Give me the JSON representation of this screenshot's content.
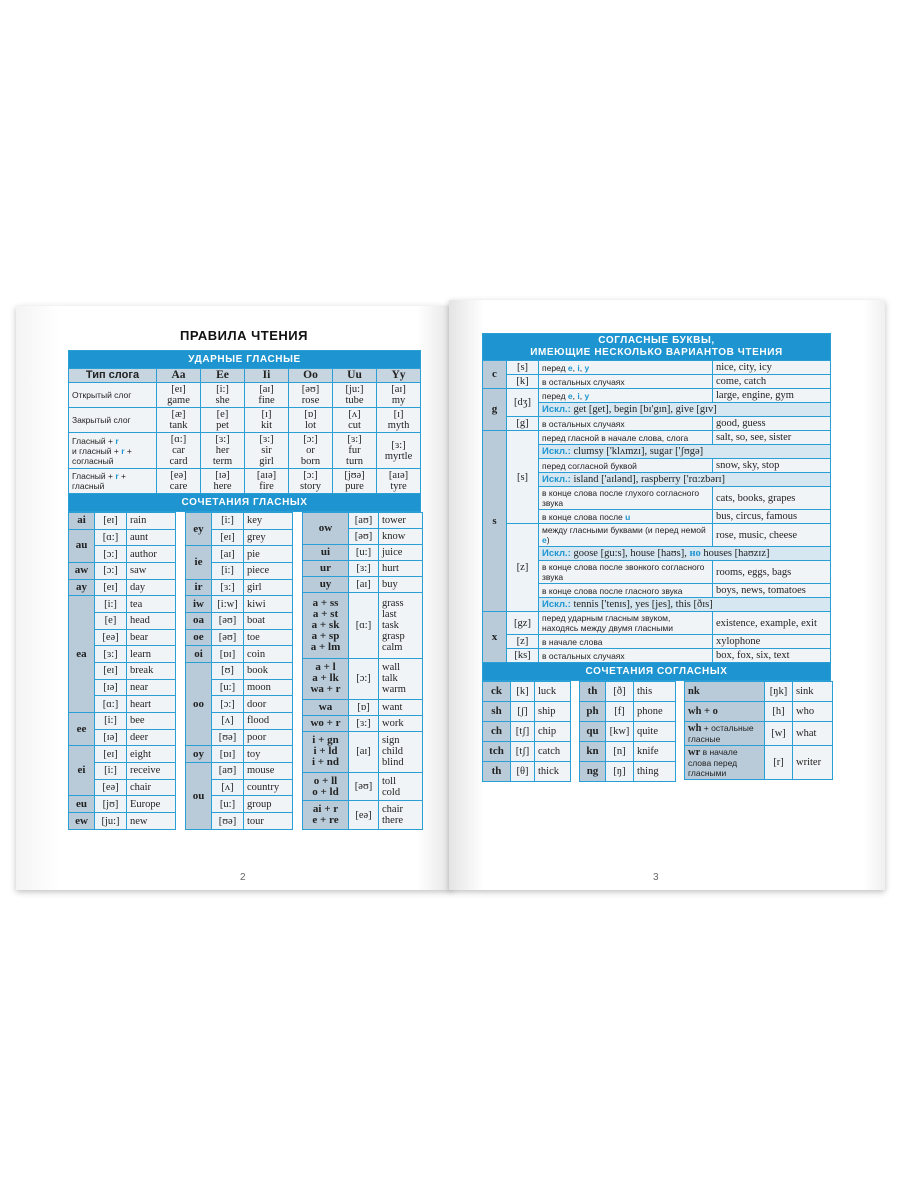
{
  "left_page": {
    "title": "ПРАВИЛА ЧТЕНИЯ",
    "page_number": "2",
    "stressed": {
      "section_title": "УДАРНЫЕ ГЛАСНЫЕ",
      "headers": [
        "Тип слога",
        "Aa",
        "Ee",
        "Ii",
        "Oo",
        "Uu",
        "Yy"
      ],
      "rows": [
        {
          "type": "Открытый слог",
          "cells": [
            "[eɪ]\ngame",
            "[i:]\nshe",
            "[aɪ]\nfine",
            "[əʊ]\nrose",
            "[ju:]\ntube",
            "[aɪ]\nmy"
          ]
        },
        {
          "type": "Закрытый слог",
          "cells": [
            "[æ]\ntank",
            "[e]\npet",
            "[ɪ]\nkit",
            "[ɒ]\nlot",
            "[ʌ]\ncut",
            "[ɪ]\nmyth"
          ]
        },
        {
          "type": "Гласный + {r}\nи гласный + {r} +\nсогласный",
          "cells": [
            "[ɑ:]\ncar\ncard",
            "[ɜ:]\nher\nterm",
            "[ɜ:]\nsir\ngirl",
            "[ɔ:]\nor\nborn",
            "[ɜ:]\nfur\nturn",
            "[ɜ:]\nmyrtle"
          ]
        },
        {
          "type": "Гласный + {r} +\nгласный",
          "cells": [
            "[eə]\ncare",
            "[ɪə]\nhere",
            "[aɪə]\nfire",
            "[ɔ:]\nstory",
            "[jʊə]\npure",
            "[aɪə]\ntyre"
          ]
        }
      ]
    },
    "vowel_combos": {
      "section_title": "СОЧЕТАНИЯ ГЛАСНЫХ",
      "columns": [
        [
          {
            "l": "ai",
            "rows": [
              [
                "[eɪ]",
                "rain"
              ]
            ]
          },
          {
            "l": "au",
            "rows": [
              [
                "[ɑ:]",
                "aunt"
              ],
              [
                "[ɔ:]",
                "author"
              ]
            ]
          },
          {
            "l": "aw",
            "rows": [
              [
                "[ɔ:]",
                "saw"
              ]
            ]
          },
          {
            "l": "ay",
            "rows": [
              [
                "[eɪ]",
                "day"
              ]
            ]
          },
          {
            "l": "ea",
            "rows": [
              [
                "[i:]",
                "tea"
              ],
              [
                "[e]",
                "head"
              ],
              [
                "[eə]",
                "bear"
              ],
              [
                "[ɜ:]",
                "learn"
              ],
              [
                "[eɪ]",
                "break"
              ],
              [
                "[ɪə]",
                "near"
              ],
              [
                "[ɑ:]",
                "heart"
              ]
            ]
          },
          {
            "l": "ee",
            "rows": [
              [
                "[i:]",
                "bee"
              ],
              [
                "[ɪə]",
                "deer"
              ]
            ]
          },
          {
            "l": "ei",
            "rows": [
              [
                "[eɪ]",
                "eight"
              ],
              [
                "[i:]",
                "receive"
              ],
              [
                "[eə]",
                "chair"
              ]
            ]
          },
          {
            "l": "eu",
            "rows": [
              [
                "[jʊ]",
                "Europe"
              ]
            ]
          },
          {
            "l": "ew",
            "rows": [
              [
                "[ju:]",
                "new"
              ]
            ]
          }
        ],
        [
          {
            "l": "ey",
            "rows": [
              [
                "[i:]",
                "key"
              ],
              [
                "[eɪ]",
                "grey"
              ]
            ]
          },
          {
            "l": "ie",
            "rows": [
              [
                "[aɪ]",
                "pie"
              ],
              [
                "[i:]",
                "piece"
              ]
            ]
          },
          {
            "l": "ir",
            "rows": [
              [
                "[ɜ:]",
                "girl"
              ]
            ]
          },
          {
            "l": "iw",
            "rows": [
              [
                "[i:w]",
                "kiwi"
              ]
            ]
          },
          {
            "l": "oa",
            "rows": [
              [
                "[əʊ]",
                "boat"
              ]
            ]
          },
          {
            "l": "oe",
            "rows": [
              [
                "[əʊ]",
                "toe"
              ]
            ]
          },
          {
            "l": "oi",
            "rows": [
              [
                "[ɒɪ]",
                "coin"
              ]
            ]
          },
          {
            "l": "oo",
            "rows": [
              [
                "[ʊ]",
                "book"
              ],
              [
                "[u:]",
                "moon"
              ],
              [
                "[ɔ:]",
                "door"
              ],
              [
                "[ʌ]",
                "flood"
              ],
              [
                "[ʊə]",
                "poor"
              ]
            ]
          },
          {
            "l": "oy",
            "rows": [
              [
                "[ɒɪ]",
                "toy"
              ]
            ]
          },
          {
            "l": "ou",
            "rows": [
              [
                "[aʊ]",
                "mouse"
              ],
              [
                "[ʌ]",
                "country"
              ],
              [
                "[u:]",
                "group"
              ],
              [
                "[ʊə]",
                "tour"
              ]
            ]
          }
        ],
        [
          {
            "l": "ow",
            "rows": [
              [
                "[aʊ]",
                "tower"
              ],
              [
                "[əʊ]",
                "know"
              ]
            ]
          },
          {
            "l": "ui",
            "rows": [
              [
                "[u:]",
                "juice"
              ]
            ]
          },
          {
            "l": "ur",
            "rows": [
              [
                "[ɜ:]",
                "hurt"
              ]
            ]
          },
          {
            "l": "uy",
            "rows": [
              [
                "[aɪ]",
                "buy"
              ]
            ]
          },
          {
            "l": "a + ss\na + st\na + sk\na + sp\na + lm",
            "rows": [
              [
                "[ɑ:]",
                "grass\nlast\ntask\ngrasp\ncalm"
              ]
            ]
          },
          {
            "l": "a + l\na + lk\nwa + r",
            "rows": [
              [
                "[ɔ:]",
                "wall\ntalk\nwarm"
              ]
            ]
          },
          {
            "l": "wa",
            "rows": [
              [
                "[ɒ]",
                "want"
              ]
            ]
          },
          {
            "l": "wo + r",
            "rows": [
              [
                "[ɜ:]",
                "work"
              ]
            ]
          },
          {
            "l": "i + gn\ni + ld\ni + nd",
            "rows": [
              [
                "[aɪ]",
                "sign\nchild\nblind"
              ]
            ]
          },
          {
            "l": "o + ll\no + ld",
            "rows": [
              [
                "[əʊ]",
                "toll\ncold"
              ]
            ]
          },
          {
            "l": "ai + r\ne + re",
            "rows": [
              [
                "[eə]",
                "chair\nthere"
              ]
            ]
          }
        ]
      ]
    }
  },
  "right_page": {
    "page_number": "3",
    "consonants": {
      "section_title": "СОГЛАСНЫЕ БУКВЫ,\nИМЕЮЩИЕ НЕСКОЛЬКО ВАРИАНТОВ ЧТЕНИЯ",
      "exception_label": "Искл.:",
      "letters": [
        {
          "l": "c",
          "sounds": [
            {
              "s": "[s]",
              "rows": [
                {
                  "r": "перед {e}, {i}, {y}",
                  "e": "nice, city, icy"
                }
              ]
            },
            {
              "s": "[k]",
              "rows": [
                {
                  "r": "в остальных случаях",
                  "e": "come, catch"
                }
              ]
            }
          ]
        },
        {
          "l": "g",
          "sounds": [
            {
              "s": "[dʒ]",
              "rows": [
                {
                  "r": "перед {e}, {i}, {y}",
                  "e": "large, engine, gym"
                },
                {
                  "x": "get [get], begin [bɪ'gɪn], give [gɪv]"
                }
              ]
            },
            {
              "s": "[g]",
              "rows": [
                {
                  "r": "в остальных случаях",
                  "e": "good, guess"
                }
              ]
            }
          ]
        },
        {
          "l": "s",
          "sounds": [
            {
              "s": "[s]",
              "rows": [
                {
                  "r": "перед гласной в начале слова, слога",
                  "e": "salt, so, see, sister"
                },
                {
                  "x": "clumsy ['klʌmzɪ], sugar ['ʃʊgə]"
                },
                {
                  "r": "перед согласной буквой",
                  "e": "snow, sky, stop"
                },
                {
                  "x": "island ['aɪlənd], raspberry ['rɑ:zbərɪ]"
                },
                {
                  "r": "в конце слова после глухого согласного звука",
                  "e": "cats, books, grapes"
                },
                {
                  "r": "в конце слова после {u}",
                  "e": "bus, circus, famous"
                }
              ]
            },
            {
              "s": "[z]",
              "rows": [
                {
                  "r": "между гласными буквами (и перед немой {e})",
                  "e": "rose, music, cheese"
                },
                {
                  "x": "goose [gu:s], house [haʊs], {но} houses [haʊzɪz]"
                },
                {
                  "r": "в конце слова после звонкого согласного звука",
                  "e": "rooms, eggs, bags"
                },
                {
                  "r": "в конце слова после гласного звука",
                  "e": "boys, news, tomatoes"
                },
                {
                  "x": "tennis ['tenɪs], yes [jes], this [ðɪs]"
                }
              ]
            }
          ]
        },
        {
          "l": "x",
          "sounds": [
            {
              "s": "[gz]",
              "rows": [
                {
                  "r": "перед ударным гласным звуком, находясь между двумя гласными",
                  "e": "existence, example, exit"
                }
              ]
            },
            {
              "s": "[z]",
              "rows": [
                {
                  "r": "в начале слова",
                  "e": "xylophone"
                }
              ]
            },
            {
              "s": "[ks]",
              "rows": [
                {
                  "r": "в остальных случаях",
                  "e": "box, fox, six, text"
                }
              ]
            }
          ]
        }
      ]
    },
    "consonant_combos": {
      "section_title": "СОЧЕТАНИЯ СОГЛАСНЫХ",
      "columns": [
        [
          [
            "ck",
            "[k]",
            "luck"
          ],
          [
            "sh",
            "[ʃ]",
            "ship"
          ],
          [
            "ch",
            "[tʃ]",
            "chip"
          ],
          [
            "tch",
            "[tʃ]",
            "catch"
          ],
          [
            "th",
            "[θ]",
            "thick"
          ]
        ],
        [
          [
            "th",
            "[ð]",
            "this"
          ],
          [
            "ph",
            "[f]",
            "phone"
          ],
          [
            "qu",
            "[kw]",
            "quite"
          ],
          [
            "kn",
            "[n]",
            "knife"
          ],
          [
            "ng",
            "[ŋ]",
            "thing"
          ]
        ],
        [
          [
            {
              "b": "nk",
              "t": ""
            },
            "[ŋk]",
            "sink"
          ],
          [
            {
              "b": "wh + o",
              "t": ""
            },
            "[h]",
            "who"
          ],
          [
            {
              "b": "wh",
              "t": " + остальные гласные"
            },
            "[w]",
            "what"
          ],
          [
            {
              "b": "wr",
              "t": " в начале слова перед гласными"
            },
            "[r]",
            "writer"
          ]
        ]
      ]
    }
  }
}
